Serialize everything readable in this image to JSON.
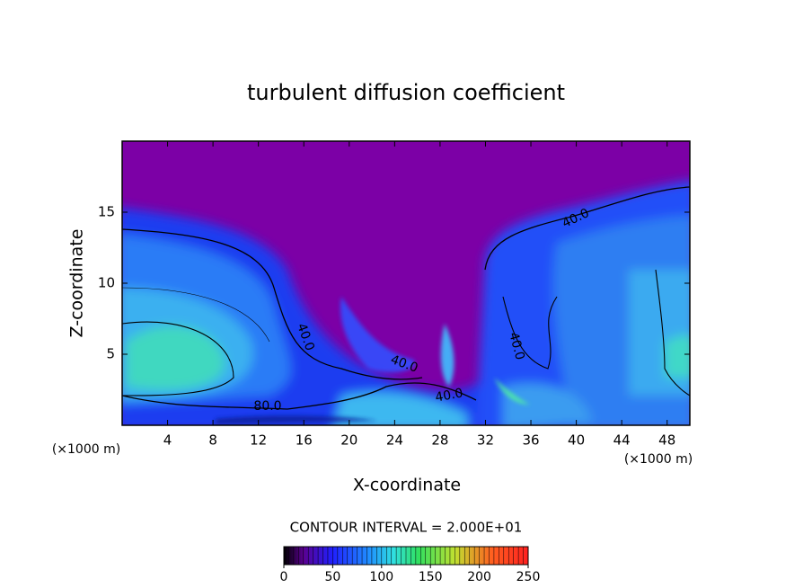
{
  "chart_data": {
    "type": "contour",
    "title": "turbulent diffusion coefficient",
    "xlabel": "X-coordinate",
    "ylabel": "Z-coordinate",
    "x_unit_label": "(×1000 m)",
    "xlim": [
      0,
      50
    ],
    "xticks": [
      4,
      8,
      12,
      16,
      20,
      24,
      28,
      32,
      36,
      40,
      44,
      48
    ],
    "ylim": [
      0,
      20
    ],
    "yticks": [
      5,
      10,
      15
    ],
    "contour_labels": [
      "40.0",
      "40.0",
      "40.0",
      "80.0",
      "40.0",
      "40.0"
    ],
    "contour_interval_label": "CONTOUR INTERVAL = 2.000E+01",
    "colorbar": {
      "lim": [
        0,
        250
      ],
      "ticks": [
        0,
        50,
        100,
        150,
        200,
        250
      ]
    }
  }
}
